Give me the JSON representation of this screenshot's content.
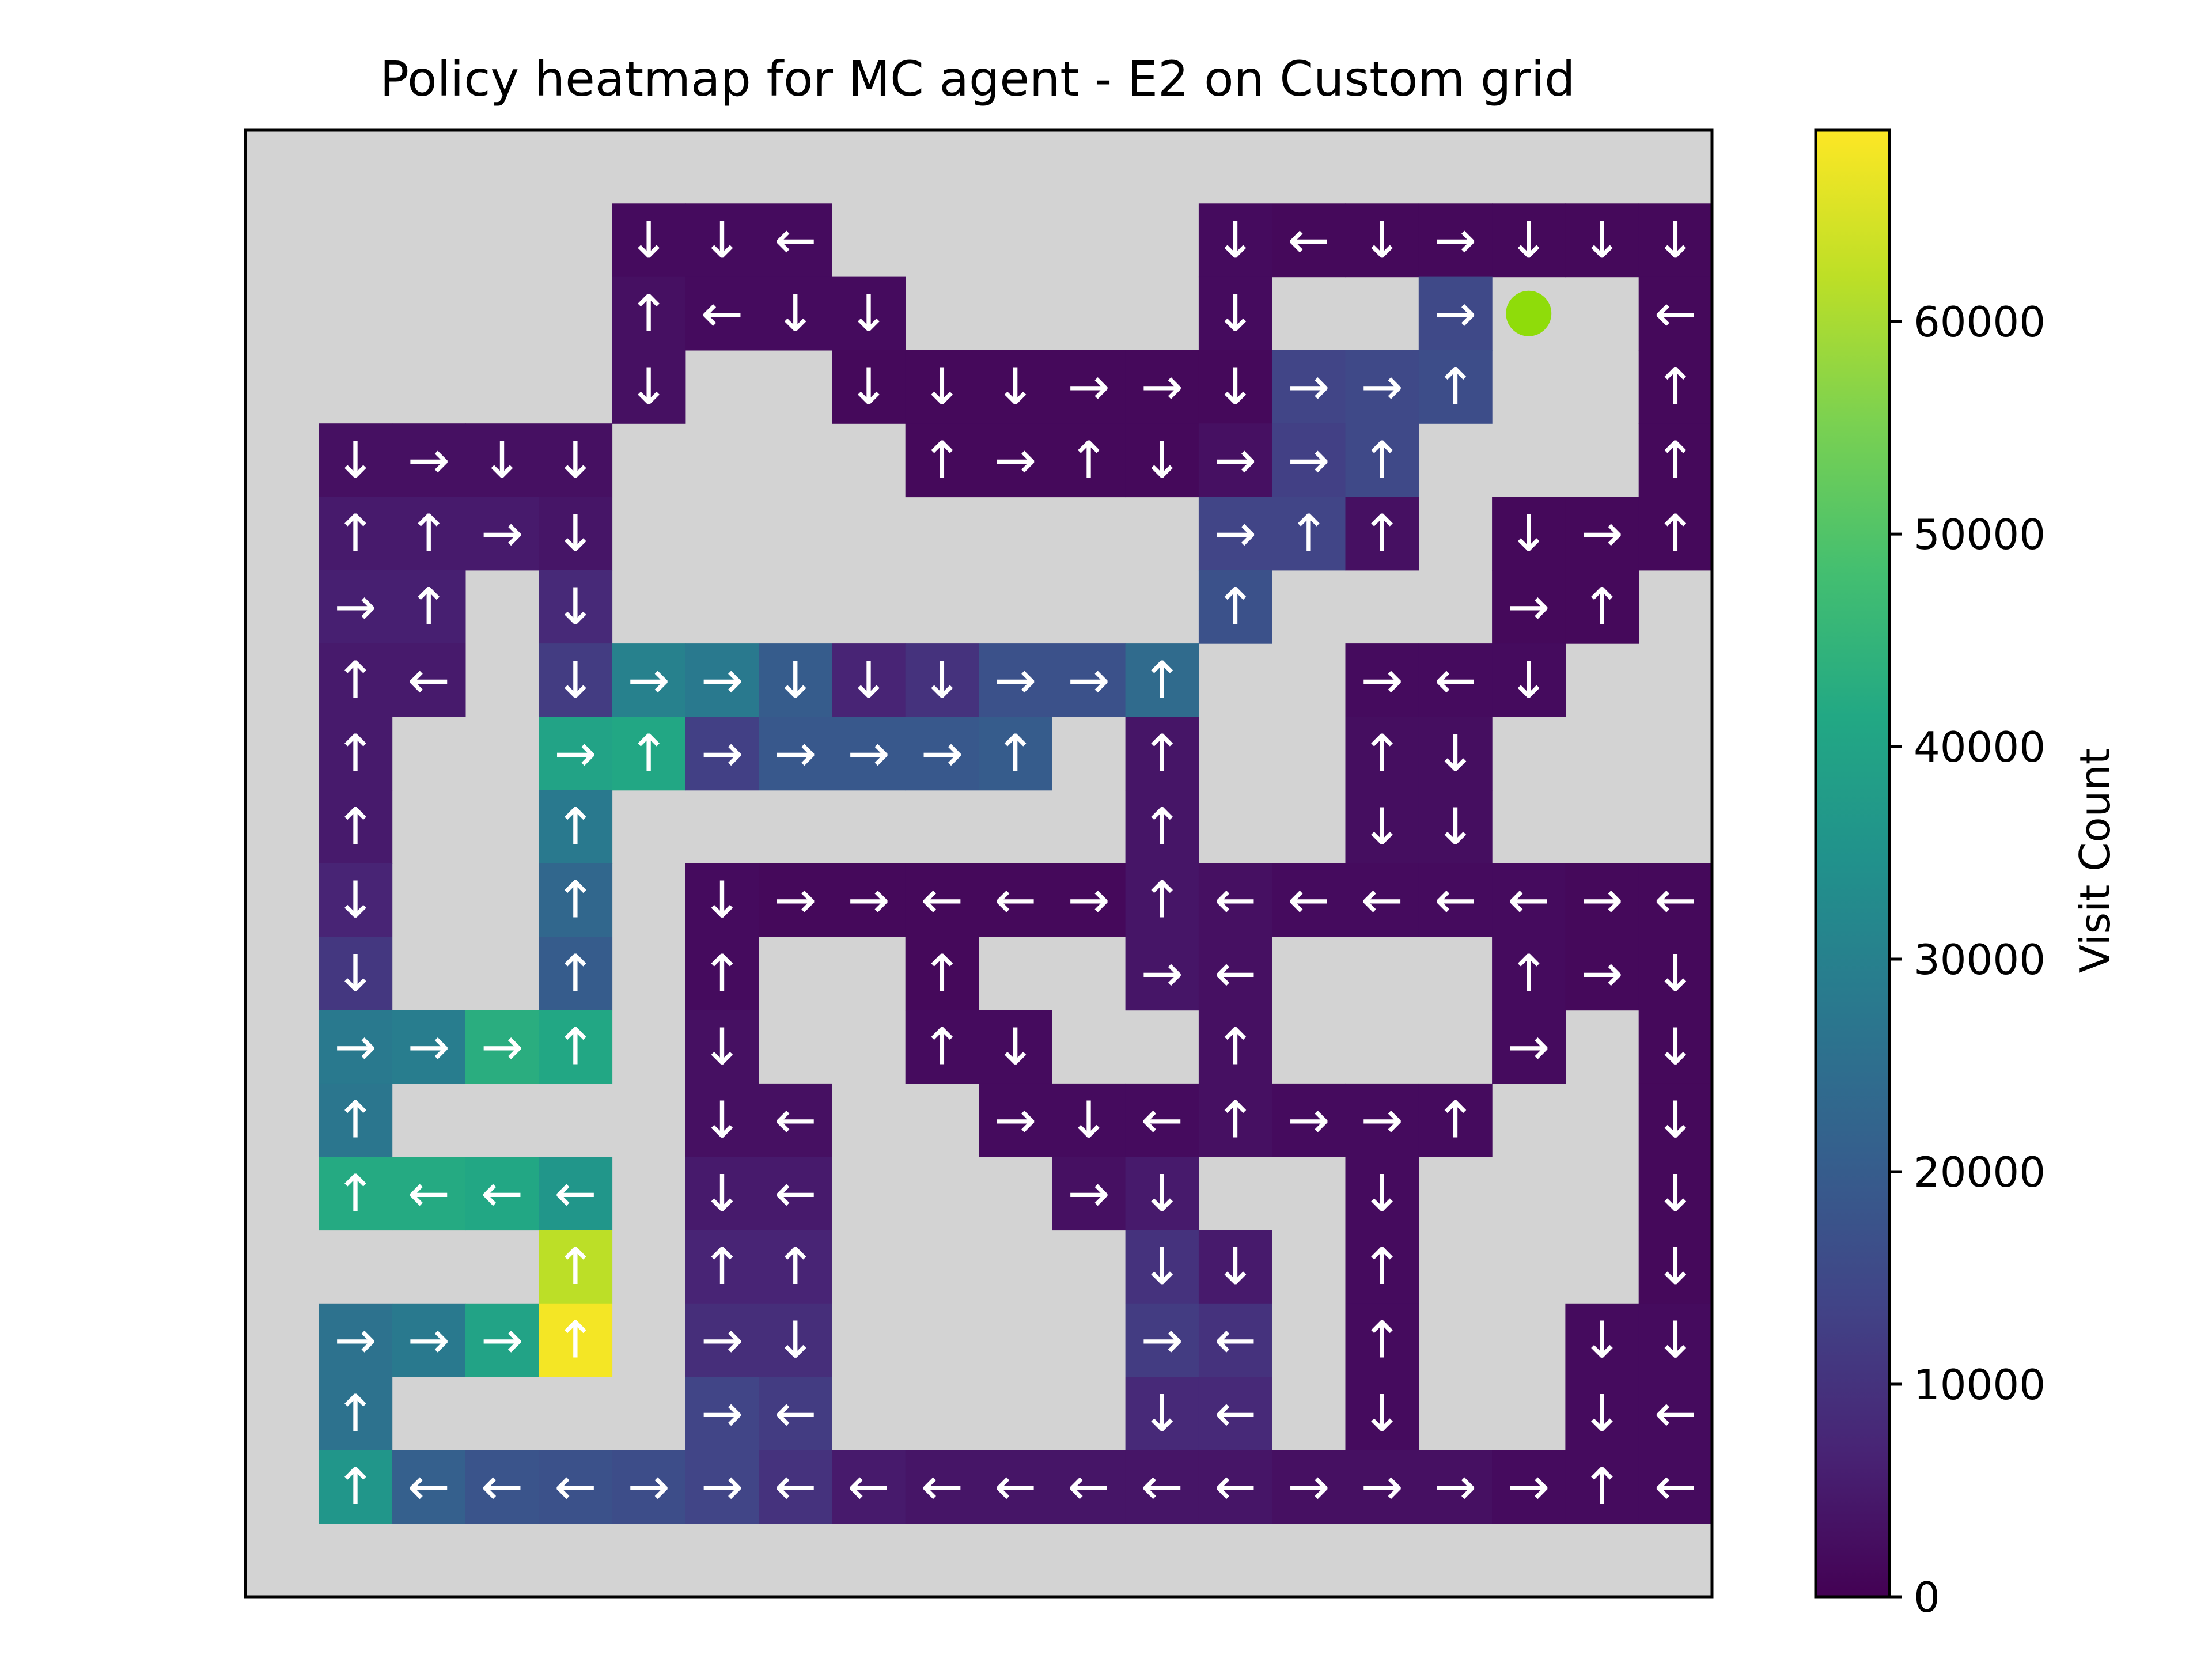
{
  "chart_data": {
    "type": "heatmap",
    "title": "Policy heatmap for MC agent - E2 on Custom grid",
    "colorbar": {
      "label": "Visit Count",
      "ticks": [
        0,
        10000,
        20000,
        30000,
        40000,
        50000,
        60000
      ],
      "tick_labels": [
        "0",
        "10000",
        "20000",
        "30000",
        "40000",
        "50000",
        "60000"
      ],
      "range": [
        0,
        69000
      ],
      "colormap": "viridis"
    },
    "grid": {
      "rows": 20,
      "cols": 20,
      "wall_color": "#d3d3d3",
      "border": true
    },
    "agent_marker": {
      "row": 2,
      "col": 17,
      "color": "#8fdc0a"
    },
    "cells": [
      {
        "r": 1,
        "c": 5,
        "a": "↓",
        "v": 2000
      },
      {
        "r": 1,
        "c": 6,
        "a": "↓",
        "v": 2000
      },
      {
        "r": 1,
        "c": 7,
        "a": "←",
        "v": 2000
      },
      {
        "r": 1,
        "c": 13,
        "a": "↓",
        "v": 2000
      },
      {
        "r": 1,
        "c": 14,
        "a": "←",
        "v": 1500
      },
      {
        "r": 1,
        "c": 15,
        "a": "↓",
        "v": 1500
      },
      {
        "r": 1,
        "c": 16,
        "a": "→",
        "v": 1500
      },
      {
        "r": 1,
        "c": 17,
        "a": "↓",
        "v": 1500
      },
      {
        "r": 1,
        "c": 18,
        "a": "↓",
        "v": 1500
      },
      {
        "r": 1,
        "c": 19,
        "a": "↓",
        "v": 1500
      },
      {
        "r": 2,
        "c": 5,
        "a": "↑",
        "v": 3000
      },
      {
        "r": 2,
        "c": 6,
        "a": "←",
        "v": 2000
      },
      {
        "r": 2,
        "c": 7,
        "a": "↓",
        "v": 2000
      },
      {
        "r": 2,
        "c": 8,
        "a": "↓",
        "v": 2000
      },
      {
        "r": 2,
        "c": 13,
        "a": "↓",
        "v": 2000
      },
      {
        "r": 2,
        "c": 16,
        "a": "→",
        "v": 15000
      },
      {
        "r": 2,
        "c": 19,
        "a": "←",
        "v": 1500
      },
      {
        "r": 3,
        "c": 5,
        "a": "↓",
        "v": 3000
      },
      {
        "r": 3,
        "c": 8,
        "a": "↓",
        "v": 1500
      },
      {
        "r": 3,
        "c": 9,
        "a": "↓",
        "v": 1500
      },
      {
        "r": 3,
        "c": 10,
        "a": "↓",
        "v": 1500
      },
      {
        "r": 3,
        "c": 11,
        "a": "→",
        "v": 1500
      },
      {
        "r": 3,
        "c": 12,
        "a": "→",
        "v": 1500
      },
      {
        "r": 3,
        "c": 13,
        "a": "↓",
        "v": 1500
      },
      {
        "r": 3,
        "c": 14,
        "a": "→",
        "v": 14000
      },
      {
        "r": 3,
        "c": 15,
        "a": "→",
        "v": 15000
      },
      {
        "r": 3,
        "c": 16,
        "a": "↑",
        "v": 16000
      },
      {
        "r": 3,
        "c": 19,
        "a": "↑",
        "v": 1500
      },
      {
        "r": 4,
        "c": 1,
        "a": "↓",
        "v": 3000
      },
      {
        "r": 4,
        "c": 2,
        "a": "→",
        "v": 3000
      },
      {
        "r": 4,
        "c": 3,
        "a": "↓",
        "v": 3000
      },
      {
        "r": 4,
        "c": 4,
        "a": "↓",
        "v": 3000
      },
      {
        "r": 4,
        "c": 9,
        "a": "↑",
        "v": 1500
      },
      {
        "r": 4,
        "c": 10,
        "a": "→",
        "v": 1500
      },
      {
        "r": 4,
        "c": 11,
        "a": "↑",
        "v": 1500
      },
      {
        "r": 4,
        "c": 12,
        "a": "↓",
        "v": 1500
      },
      {
        "r": 4,
        "c": 13,
        "a": "→",
        "v": 3000
      },
      {
        "r": 4,
        "c": 14,
        "a": "→",
        "v": 13000
      },
      {
        "r": 4,
        "c": 15,
        "a": "↑",
        "v": 15000
      },
      {
        "r": 4,
        "c": 19,
        "a": "↑",
        "v": 1500
      },
      {
        "r": 5,
        "c": 1,
        "a": "↑",
        "v": 5000
      },
      {
        "r": 5,
        "c": 2,
        "a": "↑",
        "v": 5000
      },
      {
        "r": 5,
        "c": 3,
        "a": "→",
        "v": 5000
      },
      {
        "r": 5,
        "c": 4,
        "a": "↓",
        "v": 4000
      },
      {
        "r": 5,
        "c": 13,
        "a": "→",
        "v": 14000
      },
      {
        "r": 5,
        "c": 14,
        "a": "↑",
        "v": 14000
      },
      {
        "r": 5,
        "c": 15,
        "a": "↑",
        "v": 3000
      },
      {
        "r": 5,
        "c": 17,
        "a": "↓",
        "v": 1500
      },
      {
        "r": 5,
        "c": 18,
        "a": "→",
        "v": 1500
      },
      {
        "r": 5,
        "c": 19,
        "a": "↑",
        "v": 1500
      },
      {
        "r": 6,
        "c": 1,
        "a": "→",
        "v": 6000
      },
      {
        "r": 6,
        "c": 2,
        "a": "↑",
        "v": 6000
      },
      {
        "r": 6,
        "c": 4,
        "a": "↓",
        "v": 8000
      },
      {
        "r": 6,
        "c": 13,
        "a": "↑",
        "v": 17000
      },
      {
        "r": 6,
        "c": 17,
        "a": "→",
        "v": 1500
      },
      {
        "r": 6,
        "c": 18,
        "a": "↑",
        "v": 1500
      },
      {
        "r": 7,
        "c": 1,
        "a": "↑",
        "v": 5000
      },
      {
        "r": 7,
        "c": 2,
        "a": "←",
        "v": 5000
      },
      {
        "r": 7,
        "c": 4,
        "a": "↓",
        "v": 12000
      },
      {
        "r": 7,
        "c": 5,
        "a": "→",
        "v": 30000
      },
      {
        "r": 7,
        "c": 6,
        "a": "→",
        "v": 28000
      },
      {
        "r": 7,
        "c": 7,
        "a": "↓",
        "v": 20000
      },
      {
        "r": 7,
        "c": 8,
        "a": "↓",
        "v": 7000
      },
      {
        "r": 7,
        "c": 9,
        "a": "↓",
        "v": 10000
      },
      {
        "r": 7,
        "c": 10,
        "a": "→",
        "v": 17000
      },
      {
        "r": 7,
        "c": 11,
        "a": "→",
        "v": 17000
      },
      {
        "r": 7,
        "c": 12,
        "a": "↑",
        "v": 24000
      },
      {
        "r": 7,
        "c": 15,
        "a": "→",
        "v": 2000
      },
      {
        "r": 7,
        "c": 16,
        "a": "←",
        "v": 2000
      },
      {
        "r": 7,
        "c": 17,
        "a": "↓",
        "v": 2000
      },
      {
        "r": 8,
        "c": 1,
        "a": "↑",
        "v": 5000
      },
      {
        "r": 8,
        "c": 4,
        "a": "→",
        "v": 40000
      },
      {
        "r": 8,
        "c": 5,
        "a": "↑",
        "v": 41000
      },
      {
        "r": 8,
        "c": 6,
        "a": "→",
        "v": 13000
      },
      {
        "r": 8,
        "c": 7,
        "a": "→",
        "v": 19000
      },
      {
        "r": 8,
        "c": 8,
        "a": "→",
        "v": 19000
      },
      {
        "r": 8,
        "c": 9,
        "a": "→",
        "v": 19000
      },
      {
        "r": 8,
        "c": 10,
        "a": "↑",
        "v": 20000
      },
      {
        "r": 8,
        "c": 12,
        "a": "↑",
        "v": 4000
      },
      {
        "r": 8,
        "c": 15,
        "a": "↑",
        "v": 2500
      },
      {
        "r": 8,
        "c": 16,
        "a": "↓",
        "v": 2500
      },
      {
        "r": 9,
        "c": 1,
        "a": "↑",
        "v": 5000
      },
      {
        "r": 9,
        "c": 4,
        "a": "↑",
        "v": 28000
      },
      {
        "r": 9,
        "c": 12,
        "a": "↑",
        "v": 4000
      },
      {
        "r": 9,
        "c": 15,
        "a": "↓",
        "v": 2500
      },
      {
        "r": 9,
        "c": 16,
        "a": "↓",
        "v": 2500
      },
      {
        "r": 10,
        "c": 1,
        "a": "↓",
        "v": 7000
      },
      {
        "r": 10,
        "c": 4,
        "a": "↑",
        "v": 23000
      },
      {
        "r": 10,
        "c": 6,
        "a": "↓",
        "v": 2000
      },
      {
        "r": 10,
        "c": 7,
        "a": "→",
        "v": 1500
      },
      {
        "r": 10,
        "c": 8,
        "a": "→",
        "v": 1500
      },
      {
        "r": 10,
        "c": 9,
        "a": "←",
        "v": 1500
      },
      {
        "r": 10,
        "c": 10,
        "a": "←",
        "v": 1500
      },
      {
        "r": 10,
        "c": 11,
        "a": "→",
        "v": 1500
      },
      {
        "r": 10,
        "c": 12,
        "a": "↑",
        "v": 4000
      },
      {
        "r": 10,
        "c": 13,
        "a": "←",
        "v": 3000
      },
      {
        "r": 10,
        "c": 14,
        "a": "←",
        "v": 2000
      },
      {
        "r": 10,
        "c": 15,
        "a": "←",
        "v": 2000
      },
      {
        "r": 10,
        "c": 16,
        "a": "←",
        "v": 2000
      },
      {
        "r": 10,
        "c": 17,
        "a": "←",
        "v": 2000
      },
      {
        "r": 10,
        "c": 18,
        "a": "→",
        "v": 1500
      },
      {
        "r": 10,
        "c": 19,
        "a": "←",
        "v": 1500
      },
      {
        "r": 11,
        "c": 1,
        "a": "↓",
        "v": 11000
      },
      {
        "r": 11,
        "c": 4,
        "a": "↑",
        "v": 20000
      },
      {
        "r": 11,
        "c": 6,
        "a": "↑",
        "v": 2000
      },
      {
        "r": 11,
        "c": 9,
        "a": "↑",
        "v": 1500
      },
      {
        "r": 11,
        "c": 12,
        "a": "→",
        "v": 4000
      },
      {
        "r": 11,
        "c": 13,
        "a": "←",
        "v": 3000
      },
      {
        "r": 11,
        "c": 17,
        "a": "↑",
        "v": 2000
      },
      {
        "r": 11,
        "c": 18,
        "a": "→",
        "v": 1500
      },
      {
        "r": 11,
        "c": 19,
        "a": "↓",
        "v": 1500
      },
      {
        "r": 12,
        "c": 1,
        "a": "→",
        "v": 28000
      },
      {
        "r": 12,
        "c": 2,
        "a": "→",
        "v": 29000
      },
      {
        "r": 12,
        "c": 3,
        "a": "→",
        "v": 43000
      },
      {
        "r": 12,
        "c": 4,
        "a": "↑",
        "v": 41000
      },
      {
        "r": 12,
        "c": 6,
        "a": "↓",
        "v": 3000
      },
      {
        "r": 12,
        "c": 9,
        "a": "↑",
        "v": 2000
      },
      {
        "r": 12,
        "c": 10,
        "a": "↓",
        "v": 2000
      },
      {
        "r": 12,
        "c": 13,
        "a": "↑",
        "v": 3000
      },
      {
        "r": 12,
        "c": 17,
        "a": "→",
        "v": 2000
      },
      {
        "r": 12,
        "c": 19,
        "a": "↓",
        "v": 1500
      },
      {
        "r": 13,
        "c": 1,
        "a": "↑",
        "v": 27000
      },
      {
        "r": 13,
        "c": 6,
        "a": "↓",
        "v": 3000
      },
      {
        "r": 13,
        "c": 7,
        "a": "←",
        "v": 3000
      },
      {
        "r": 13,
        "c": 10,
        "a": "→",
        "v": 2000
      },
      {
        "r": 13,
        "c": 11,
        "a": "↓",
        "v": 2000
      },
      {
        "r": 13,
        "c": 12,
        "a": "←",
        "v": 2000
      },
      {
        "r": 13,
        "c": 13,
        "a": "↑",
        "v": 3000
      },
      {
        "r": 13,
        "c": 14,
        "a": "→",
        "v": 2000
      },
      {
        "r": 13,
        "c": 15,
        "a": "→",
        "v": 2000
      },
      {
        "r": 13,
        "c": 16,
        "a": "↑",
        "v": 2000
      },
      {
        "r": 13,
        "c": 19,
        "a": "↓",
        "v": 1500
      },
      {
        "r": 14,
        "c": 1,
        "a": "↑",
        "v": 42000
      },
      {
        "r": 14,
        "c": 2,
        "a": "←",
        "v": 42000
      },
      {
        "r": 14,
        "c": 3,
        "a": "←",
        "v": 41000
      },
      {
        "r": 14,
        "c": 4,
        "a": "←",
        "v": 36000
      },
      {
        "r": 14,
        "c": 6,
        "a": "↓",
        "v": 5000
      },
      {
        "r": 14,
        "c": 7,
        "a": "←",
        "v": 5000
      },
      {
        "r": 14,
        "c": 11,
        "a": "→",
        "v": 3000
      },
      {
        "r": 14,
        "c": 12,
        "a": "↓",
        "v": 5000
      },
      {
        "r": 14,
        "c": 15,
        "a": "↓",
        "v": 2000
      },
      {
        "r": 14,
        "c": 19,
        "a": "↓",
        "v": 1500
      },
      {
        "r": 15,
        "c": 4,
        "a": "↑",
        "v": 62000
      },
      {
        "r": 15,
        "c": 6,
        "a": "↑",
        "v": 7000
      },
      {
        "r": 15,
        "c": 7,
        "a": "↑",
        "v": 7000
      },
      {
        "r": 15,
        "c": 12,
        "a": "↓",
        "v": 10000
      },
      {
        "r": 15,
        "c": 13,
        "a": "↓",
        "v": 5000
      },
      {
        "r": 15,
        "c": 15,
        "a": "↑",
        "v": 2000
      },
      {
        "r": 15,
        "c": 19,
        "a": "↓",
        "v": 1500
      },
      {
        "r": 16,
        "c": 1,
        "a": "→",
        "v": 26000
      },
      {
        "r": 16,
        "c": 2,
        "a": "→",
        "v": 28000
      },
      {
        "r": 16,
        "c": 3,
        "a": "→",
        "v": 40000
      },
      {
        "r": 16,
        "c": 4,
        "a": "↑",
        "v": 68000
      },
      {
        "r": 16,
        "c": 6,
        "a": "→",
        "v": 9000
      },
      {
        "r": 16,
        "c": 7,
        "a": "↓",
        "v": 9000
      },
      {
        "r": 16,
        "c": 12,
        "a": "→",
        "v": 12000
      },
      {
        "r": 16,
        "c": 13,
        "a": "←",
        "v": 10000
      },
      {
        "r": 16,
        "c": 15,
        "a": "↑",
        "v": 2000
      },
      {
        "r": 16,
        "c": 18,
        "a": "↓",
        "v": 2000
      },
      {
        "r": 16,
        "c": 19,
        "a": "↓",
        "v": 2000
      },
      {
        "r": 17,
        "c": 1,
        "a": "↑",
        "v": 26000
      },
      {
        "r": 17,
        "c": 6,
        "a": "→",
        "v": 14000
      },
      {
        "r": 17,
        "c": 7,
        "a": "←",
        "v": 12000
      },
      {
        "r": 17,
        "c": 12,
        "a": "↓",
        "v": 8000
      },
      {
        "r": 17,
        "c": 13,
        "a": "←",
        "v": 8000
      },
      {
        "r": 17,
        "c": 15,
        "a": "↓",
        "v": 2000
      },
      {
        "r": 17,
        "c": 18,
        "a": "↓",
        "v": 2000
      },
      {
        "r": 17,
        "c": 19,
        "a": "←",
        "v": 2000
      },
      {
        "r": 18,
        "c": 1,
        "a": "↑",
        "v": 36000
      },
      {
        "r": 18,
        "c": 2,
        "a": "←",
        "v": 21000
      },
      {
        "r": 18,
        "c": 3,
        "a": "←",
        "v": 18000
      },
      {
        "r": 18,
        "c": 4,
        "a": "←",
        "v": 17000
      },
      {
        "r": 18,
        "c": 5,
        "a": "→",
        "v": 16000
      },
      {
        "r": 18,
        "c": 6,
        "a": "→",
        "v": 14000
      },
      {
        "r": 18,
        "c": 7,
        "a": "←",
        "v": 10000
      },
      {
        "r": 18,
        "c": 8,
        "a": "←",
        "v": 5000
      },
      {
        "r": 18,
        "c": 9,
        "a": "←",
        "v": 4000
      },
      {
        "r": 18,
        "c": 10,
        "a": "←",
        "v": 4000
      },
      {
        "r": 18,
        "c": 11,
        "a": "←",
        "v": 4000
      },
      {
        "r": 18,
        "c": 12,
        "a": "←",
        "v": 4000
      },
      {
        "r": 18,
        "c": 13,
        "a": "←",
        "v": 4000
      },
      {
        "r": 18,
        "c": 14,
        "a": "→",
        "v": 3000
      },
      {
        "r": 18,
        "c": 15,
        "a": "→",
        "v": 3000
      },
      {
        "r": 18,
        "c": 16,
        "a": "→",
        "v": 3000
      },
      {
        "r": 18,
        "c": 17,
        "a": "→",
        "v": 2000
      },
      {
        "r": 18,
        "c": 18,
        "a": "↑",
        "v": 2000
      },
      {
        "r": 18,
        "c": 19,
        "a": "←",
        "v": 2000
      }
    ]
  }
}
